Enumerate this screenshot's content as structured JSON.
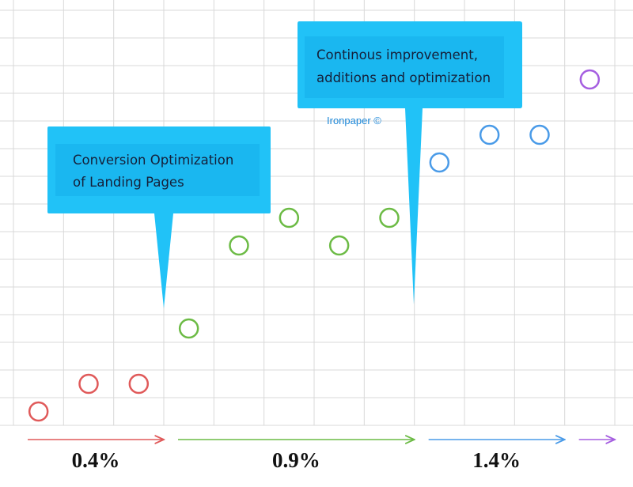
{
  "chart_data": {
    "type": "scatter",
    "xlim": [
      0,
      12
    ],
    "ylim": [
      0,
      15
    ],
    "xticks": [
      0,
      1,
      2,
      3,
      4,
      5,
      6,
      7,
      8,
      9,
      10,
      11,
      12
    ],
    "yticks": [
      0,
      1,
      2,
      3,
      4,
      5,
      6,
      7,
      8,
      9,
      10,
      11,
      12,
      13,
      14,
      15
    ],
    "grid": true,
    "series": [
      {
        "color": "#e05a5a",
        "x": [
          0.5,
          1.5,
          2.5
        ],
        "values": [
          0.5,
          1.5,
          1.5
        ]
      },
      {
        "color": "#6cbb45",
        "x": [
          3.5,
          4.5,
          5.5,
          6.5,
          7.5
        ],
        "values": [
          3.5,
          6.5,
          7.5,
          6.5,
          7.5
        ]
      },
      {
        "color": "#4a9be8",
        "x": [
          8.5,
          9.5,
          10.5
        ],
        "values": [
          9.5,
          10.5,
          10.5
        ]
      },
      {
        "color": "#a55ee0",
        "x": [
          11.5
        ],
        "values": [
          12.5
        ]
      }
    ],
    "ranges": [
      {
        "label": "0.4%",
        "color": "#e05a5a"
      },
      {
        "label": "0.9%",
        "color": "#6cbb45"
      },
      {
        "label": "1.4%",
        "color": "#4a9be8"
      },
      {
        "color": "#a55ee0"
      }
    ],
    "annotations": [
      {
        "lines": [
          "Conversion Optimization",
          "of Landing Pages"
        ]
      },
      {
        "lines": [
          "Continous improvement,",
          "additions and optimization"
        ]
      }
    ],
    "watermark": "Ironpaper ©"
  }
}
